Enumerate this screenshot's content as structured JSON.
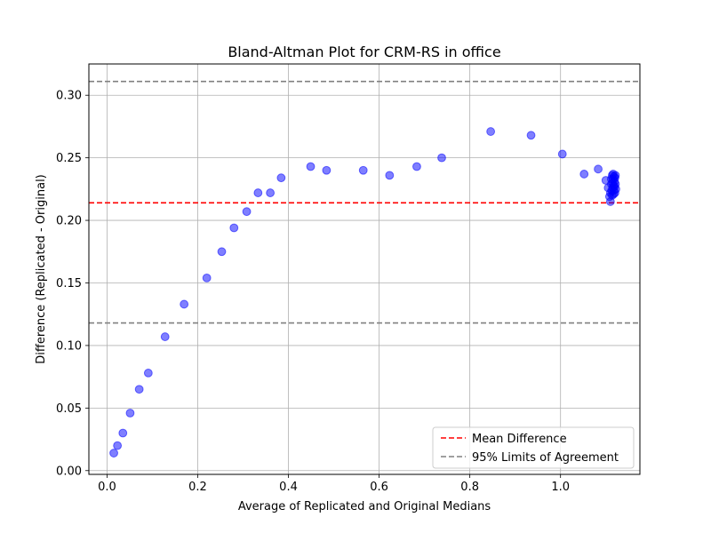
{
  "chart_data": {
    "type": "scatter",
    "title": "Bland-Altman Plot for CRM-RS in office",
    "xlabel": "Average of Replicated and Original Medians",
    "ylabel": "Difference (Replicated - Original)",
    "xlim": [
      -0.04,
      1.175
    ],
    "ylim": [
      -0.003,
      0.325
    ],
    "xticks": [
      0.0,
      0.2,
      0.4,
      0.6,
      0.8,
      1.0
    ],
    "xtick_labels": [
      "0.0",
      "0.2",
      "0.4",
      "0.6",
      "0.8",
      "1.0"
    ],
    "yticks": [
      0.0,
      0.05,
      0.1,
      0.15,
      0.2,
      0.25,
      0.3
    ],
    "ytick_labels": [
      "0.00",
      "0.05",
      "0.10",
      "0.15",
      "0.20",
      "0.25",
      "0.30"
    ],
    "grid": true,
    "legend_position": "lower-right",
    "point_color": "#0000ff",
    "mean_difference": 0.214,
    "upper_loa": 0.311,
    "lower_loa": 0.118,
    "mean_color": "#ff0000",
    "loa_color": "#808080",
    "legend": {
      "mean_label": "Mean Difference",
      "loa_label": "95% Limits of Agreement"
    },
    "points": [
      [
        0.015,
        0.014
      ],
      [
        0.023,
        0.02
      ],
      [
        0.035,
        0.03
      ],
      [
        0.051,
        0.046
      ],
      [
        0.071,
        0.065
      ],
      [
        0.091,
        0.078
      ],
      [
        0.128,
        0.107
      ],
      [
        0.17,
        0.133
      ],
      [
        0.22,
        0.154
      ],
      [
        0.253,
        0.175
      ],
      [
        0.28,
        0.194
      ],
      [
        0.308,
        0.207
      ],
      [
        0.333,
        0.222
      ],
      [
        0.36,
        0.222
      ],
      [
        0.384,
        0.234
      ],
      [
        0.449,
        0.243
      ],
      [
        0.484,
        0.24
      ],
      [
        0.565,
        0.24
      ],
      [
        0.623,
        0.236
      ],
      [
        0.683,
        0.243
      ],
      [
        0.738,
        0.25
      ],
      [
        0.846,
        0.271
      ],
      [
        0.935,
        0.268
      ],
      [
        1.004,
        0.253
      ],
      [
        1.052,
        0.237
      ],
      [
        1.083,
        0.241
      ],
      [
        1.1,
        0.232
      ],
      [
        1.105,
        0.226
      ],
      [
        1.108,
        0.219
      ],
      [
        1.11,
        0.215
      ],
      [
        1.11,
        0.222
      ],
      [
        1.112,
        0.229
      ],
      [
        1.112,
        0.233
      ],
      [
        1.113,
        0.224
      ],
      [
        1.114,
        0.236
      ],
      [
        1.114,
        0.22
      ],
      [
        1.115,
        0.23
      ],
      [
        1.115,
        0.226
      ],
      [
        1.116,
        0.233
      ],
      [
        1.116,
        0.237
      ],
      [
        1.117,
        0.221
      ],
      [
        1.117,
        0.228
      ],
      [
        1.118,
        0.235
      ],
      [
        1.118,
        0.224
      ],
      [
        1.119,
        0.231
      ],
      [
        1.119,
        0.227
      ],
      [
        1.12,
        0.234
      ],
      [
        1.12,
        0.222
      ],
      [
        1.121,
        0.229
      ],
      [
        1.121,
        0.236
      ],
      [
        1.122,
        0.225
      ]
    ]
  }
}
